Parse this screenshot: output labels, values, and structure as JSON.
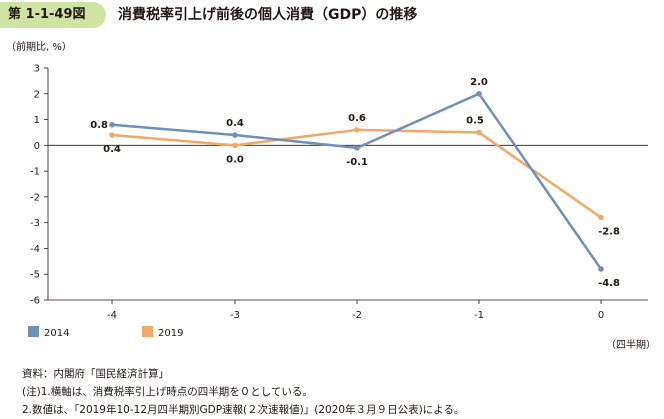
{
  "header": {
    "figure_number": "第 1-1-49図",
    "title": "消費税率引上げ前後の個人消費（GDP）の推移"
  },
  "chart_data": {
    "type": "line",
    "ylabel": "（前期比, %）",
    "xlabel": "（四半期）",
    "ylim": [
      -6,
      3
    ],
    "yticks": [
      "3",
      "2",
      "1",
      "0",
      "-1",
      "-2",
      "-3",
      "-4",
      "-5",
      "-6"
    ],
    "categories": [
      "-4",
      "-3",
      "-2",
      "-1",
      "0"
    ],
    "grid": false,
    "legend_position": "bottom-left",
    "series": [
      {
        "name": "2014",
        "color": "#6f8fbd",
        "values": [
          0.8,
          0.4,
          -0.1,
          2.0,
          -4.8
        ],
        "labels": [
          "0.8",
          "0.4",
          "-0.1",
          "2.0",
          "-4.8"
        ],
        "label_positions": [
          "left",
          "above",
          "below",
          "above",
          "below"
        ]
      },
      {
        "name": "2019",
        "color": "#f3a865",
        "values": [
          0.4,
          0.0,
          0.6,
          0.5,
          -2.8
        ],
        "labels": [
          "0.4",
          "0.0",
          "0.6",
          "0.5",
          "-2.8"
        ],
        "label_positions": [
          "below",
          "below",
          "above",
          "above",
          "below"
        ]
      }
    ]
  },
  "notes": [
    "資料：内閣府「国民経済計算」",
    "(注)1.横軸は、消費税率引上げ時点の四半期を０としている。",
    "2.数値は、「2019年10-12月四半期別GDP速報(２次速報値)」(2020年３月９日公表)による。"
  ]
}
